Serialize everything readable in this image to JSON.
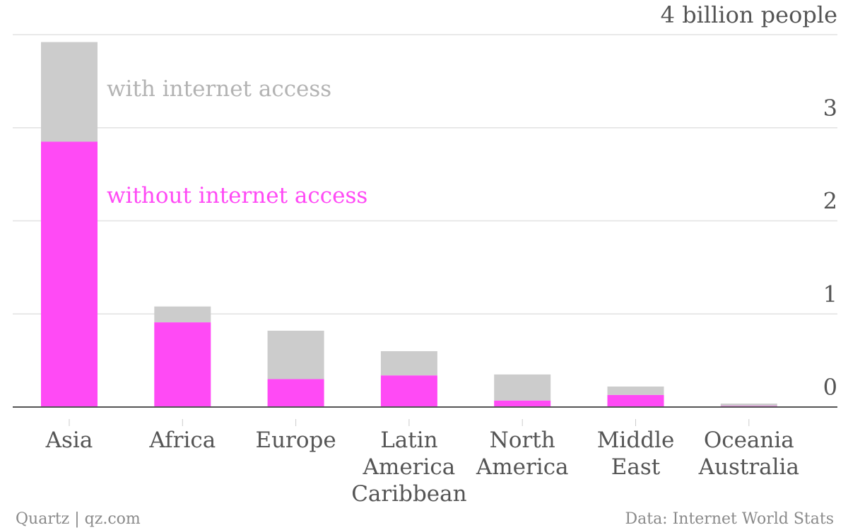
{
  "chart_data": {
    "type": "bar",
    "stacked": true,
    "categories": [
      [
        "Asia"
      ],
      [
        "Africa"
      ],
      [
        "Europe"
      ],
      [
        "Latin",
        "America",
        "Caribbean"
      ],
      [
        "North",
        "America"
      ],
      [
        "Middle",
        "East"
      ],
      [
        "Oceania",
        "Australia"
      ]
    ],
    "series": [
      {
        "name": "without internet access",
        "color": "#ff4af5",
        "values": [
          2.85,
          0.91,
          0.3,
          0.34,
          0.07,
          0.13,
          0.012
        ]
      },
      {
        "name": "with internet access",
        "color": "#cccccc",
        "values": [
          1.07,
          0.17,
          0.52,
          0.26,
          0.28,
          0.09,
          0.025
        ]
      }
    ],
    "ylim": [
      0,
      4
    ],
    "yticks": [
      {
        "value": 0,
        "label": "0"
      },
      {
        "value": 1,
        "label": "1"
      },
      {
        "value": 2,
        "label": "2"
      },
      {
        "value": 3,
        "label": "3"
      },
      {
        "value": 4,
        "label": "4 billion people"
      }
    ],
    "grid": true,
    "legend": "inline, beside the first bar"
  },
  "footer": {
    "source_left": "Quartz | qz.com",
    "source_right": "Data: Internet World Stats"
  }
}
